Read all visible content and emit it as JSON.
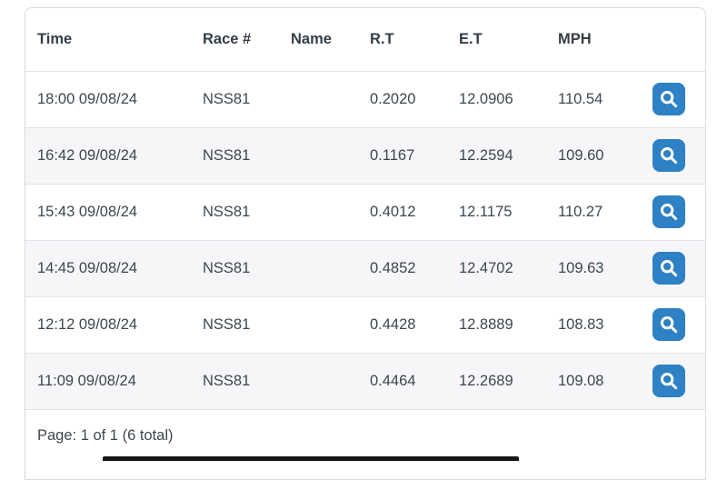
{
  "table": {
    "columns": [
      {
        "key": "time",
        "label": "Time"
      },
      {
        "key": "race_number",
        "label": "Race #"
      },
      {
        "key": "name",
        "label": "Name"
      },
      {
        "key": "rt",
        "label": "R.T"
      },
      {
        "key": "et",
        "label": "E.T"
      },
      {
        "key": "mph",
        "label": "MPH"
      }
    ],
    "rows": [
      {
        "time": "18:00 09/08/24",
        "race_number": "NSS81",
        "name": "",
        "rt": "0.2020",
        "et": "12.0906",
        "mph": "110.54"
      },
      {
        "time": "16:42 09/08/24",
        "race_number": "NSS81",
        "name": "",
        "rt": "0.1167",
        "et": "12.2594",
        "mph": "109.60"
      },
      {
        "time": "15:43 09/08/24",
        "race_number": "NSS81",
        "name": "",
        "rt": "0.4012",
        "et": "12.1175",
        "mph": "110.27"
      },
      {
        "time": "14:45 09/08/24",
        "race_number": "NSS81",
        "name": "",
        "rt": "0.4852",
        "et": "12.4702",
        "mph": "109.63"
      },
      {
        "time": "12:12 09/08/24",
        "race_number": "NSS81",
        "name": "",
        "rt": "0.4428",
        "et": "12.8889",
        "mph": "108.83"
      },
      {
        "time": "11:09 09/08/24",
        "race_number": "NSS81",
        "name": "",
        "rt": "0.4464",
        "et": "12.2689",
        "mph": "109.08"
      }
    ],
    "action_icon": "magnifier-icon"
  },
  "footer": {
    "pagination": "Page: 1 of 1 (6 total)"
  },
  "colors": {
    "accent": "#2d81c4",
    "stripe": "#f6f6f8",
    "border": "#e3e3e7",
    "text": "#3d4650"
  }
}
